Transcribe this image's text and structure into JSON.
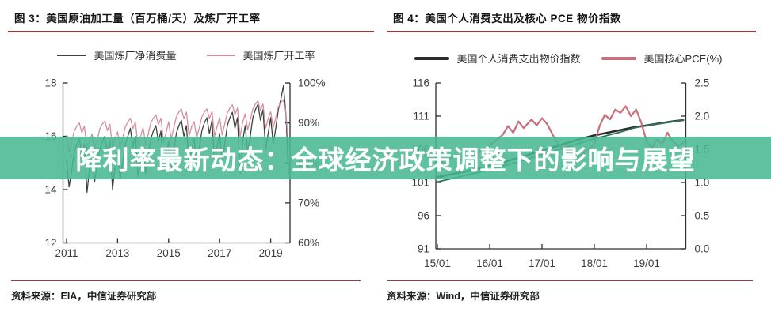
{
  "banner": {
    "text": "降利率最新动态：全球经济政策调整下的影响与展望",
    "background_color": "#4AB893",
    "background_rgba": "rgba(74,184,147,0.88)",
    "text_color": "#FFFFFF"
  },
  "colors": {
    "rule": "#9B3A3A",
    "axis": "#2E2E2E"
  },
  "chart_data": [
    {
      "type": "line",
      "title": "图 3：美国原油加工量（百万桶/天）及炼厂开工率",
      "source": "资料来源：EIA，中信证券研究部",
      "x_axis": {
        "range": [
          2011.0,
          2019.8
        ],
        "tick_values": [
          2011,
          2013,
          2015,
          2017,
          2019
        ],
        "tick_labels": [
          "2011",
          "2013",
          "2015",
          "2017",
          "2019"
        ]
      },
      "y_left": {
        "range": [
          12,
          18
        ],
        "tick_values": [
          12,
          14,
          16,
          18
        ],
        "tick_labels": [
          "12",
          "14",
          "16",
          "18"
        ]
      },
      "y_right": {
        "range": [
          60,
          100
        ],
        "tick_values": [
          60,
          70,
          80,
          90,
          100
        ],
        "tick_labels": [
          "60%",
          "70%",
          "80%",
          "90%",
          "100%"
        ]
      },
      "series": [
        {
          "name": "美国炼厂净消费量",
          "axis": "left",
          "color": "#3D443E",
          "width": 1.3,
          "x_start": 2011.0,
          "x_step": 0.1,
          "values": [
            15.1,
            14.1,
            14.7,
            15.4,
            15.7,
            15.9,
            15.3,
            15.7,
            13.9,
            14.8,
            15.2,
            14.3,
            14.9,
            15.5,
            15.8,
            16.0,
            15.4,
            15.8,
            14.0,
            14.9,
            15.4,
            14.4,
            15.0,
            15.7,
            16.0,
            16.3,
            15.6,
            16.0,
            14.5,
            15.1,
            15.6,
            14.6,
            15.2,
            15.9,
            16.2,
            16.4,
            15.8,
            16.2,
            14.7,
            15.3,
            15.8,
            14.7,
            15.4,
            16.1,
            16.4,
            16.6,
            16.0,
            16.4,
            14.9,
            15.5,
            15.9,
            14.9,
            15.5,
            16.2,
            16.5,
            16.7,
            16.1,
            16.6,
            15.0,
            15.6,
            16.1,
            14.9,
            15.7,
            16.4,
            16.7,
            16.9,
            16.3,
            16.7,
            14.6,
            15.8,
            16.4,
            15.4,
            16.0,
            16.7,
            17.0,
            17.2,
            16.6,
            17.0,
            15.5,
            16.1,
            16.7,
            15.7,
            16.3,
            17.0,
            17.4,
            17.9,
            16.8,
            14.6
          ]
        },
        {
          "name": "美国炼厂开工率",
          "axis": "right",
          "color": "#D58F9C",
          "width": 1.3,
          "x_start": 2011.0,
          "x_step": 0.1,
          "values": [
            86.8,
            82.8,
            85.2,
            88.0,
            89.2,
            90.0,
            87.6,
            89.2,
            83.2,
            85.6,
            87.3,
            83.3,
            85.7,
            88.5,
            89.7,
            90.5,
            88.1,
            89.7,
            83.7,
            86.1,
            87.8,
            83.8,
            86.2,
            89.0,
            90.2,
            91.2,
            88.6,
            90.2,
            84.2,
            86.6,
            88.8,
            84.8,
            87.2,
            90.0,
            91.2,
            92.0,
            89.6,
            91.2,
            85.2,
            87.6,
            90.3,
            86.0,
            88.7,
            91.5,
            92.7,
            93.5,
            91.1,
            92.7,
            86.7,
            89.1,
            90.3,
            86.3,
            88.7,
            91.5,
            92.7,
            93.5,
            91.1,
            92.9,
            86.7,
            89.1,
            91.3,
            87.0,
            89.7,
            92.5,
            93.7,
            94.5,
            92.1,
            93.7,
            86.5,
            90.1,
            92.3,
            88.3,
            90.7,
            93.5,
            94.7,
            95.5,
            93.1,
            94.7,
            88.7,
            91.1,
            92.8,
            88.8,
            91.3,
            94.0,
            95.2,
            95.8,
            92.5,
            84.0
          ]
        }
      ]
    },
    {
      "type": "line",
      "title": "图 4：美国个人消费支出及核心 PCE 物价指数",
      "source": "资料来源：Wind，中信证券研究部",
      "x_axis": {
        "range": [
          15.0,
          19.75
        ],
        "tick_values": [
          15,
          16,
          17,
          18,
          19
        ],
        "tick_labels": [
          "15/01",
          "16/01",
          "17/01",
          "18/01",
          "19/01"
        ]
      },
      "y_left": {
        "range": [
          91,
          116
        ],
        "tick_values": [
          91,
          96,
          101,
          106,
          111,
          116
        ],
        "tick_labels": [
          "91",
          "96",
          "101",
          "106",
          "111",
          "116"
        ]
      },
      "y_right": {
        "range": [
          0,
          2.5
        ],
        "tick_values": [
          0,
          0.5,
          1.0,
          1.5,
          2.0,
          2.5
        ],
        "tick_labels": [
          "0.0",
          "0.5",
          "1.0",
          "1.5",
          "2.0",
          "2.5"
        ]
      },
      "series": [
        {
          "name": "美国个人消费支出物价指数",
          "axis": "left",
          "color": "#2B2B2B",
          "width": 2.6,
          "points": [
            [
              15.0,
              101.8
            ],
            [
              15.25,
              102.2
            ],
            [
              15.5,
              102.6
            ],
            [
              15.75,
              103.0
            ],
            [
              16.0,
              103.5
            ],
            [
              16.25,
              104.0
            ],
            [
              16.5,
              104.6
            ],
            [
              16.75,
              105.2
            ],
            [
              17.0,
              105.8
            ],
            [
              17.25,
              106.4
            ],
            [
              17.5,
              107.0
            ],
            [
              17.75,
              107.6
            ],
            [
              18.0,
              108.1
            ],
            [
              18.25,
              108.5
            ],
            [
              18.5,
              108.9
            ],
            [
              18.75,
              109.3
            ],
            [
              19.0,
              109.6
            ],
            [
              19.25,
              109.9
            ],
            [
              19.5,
              110.2
            ],
            [
              19.7,
              110.4
            ]
          ]
        },
        {
          "name": "",
          "axis": "left",
          "color": "#2E7257",
          "width": 1.8,
          "points": [
            [
              15.0,
              101.1
            ],
            [
              15.5,
              102.0
            ],
            [
              16.0,
              102.9
            ],
            [
              16.5,
              104.0
            ],
            [
              17.0,
              105.2
            ],
            [
              17.5,
              106.4
            ],
            [
              17.75,
              107.0
            ],
            [
              18.0,
              107.6
            ],
            [
              18.25,
              108.1
            ],
            [
              18.5,
              108.6
            ],
            [
              18.75,
              109.2
            ],
            [
              19.0,
              109.6
            ],
            [
              19.35,
              110.0
            ],
            [
              19.7,
              110.4
            ]
          ]
        },
        {
          "name": "美国核心PCE(%)",
          "axis": "right",
          "color": "#C96E7C",
          "width": 2.2,
          "points": [
            [
              15.0,
              1.35
            ],
            [
              15.15,
              1.28
            ],
            [
              15.3,
              1.4
            ],
            [
              15.5,
              1.33
            ],
            [
              15.7,
              1.42
            ],
            [
              15.9,
              1.5
            ],
            [
              16.1,
              1.62
            ],
            [
              16.25,
              1.72
            ],
            [
              16.35,
              1.85
            ],
            [
              16.45,
              1.75
            ],
            [
              16.55,
              1.92
            ],
            [
              16.65,
              1.82
            ],
            [
              16.8,
              1.95
            ],
            [
              16.9,
              1.86
            ],
            [
              17.0,
              1.97
            ],
            [
              17.1,
              1.88
            ],
            [
              17.25,
              1.65
            ],
            [
              17.4,
              1.5
            ],
            [
              17.55,
              1.42
            ],
            [
              17.7,
              1.38
            ],
            [
              17.85,
              1.48
            ],
            [
              18.0,
              1.58
            ],
            [
              18.1,
              1.85
            ],
            [
              18.2,
              2.02
            ],
            [
              18.3,
              1.95
            ],
            [
              18.4,
              2.1
            ],
            [
              18.5,
              2.05
            ],
            [
              18.6,
              2.15
            ],
            [
              18.7,
              2.0
            ],
            [
              18.8,
              2.1
            ],
            [
              18.9,
              1.9
            ],
            [
              19.0,
              1.62
            ],
            [
              19.1,
              1.52
            ],
            [
              19.2,
              1.65
            ],
            [
              19.3,
              1.58
            ],
            [
              19.4,
              1.75
            ],
            [
              19.5,
              1.62
            ],
            [
              19.6,
              1.55
            ],
            [
              19.7,
              1.6
            ]
          ]
        }
      ]
    }
  ]
}
